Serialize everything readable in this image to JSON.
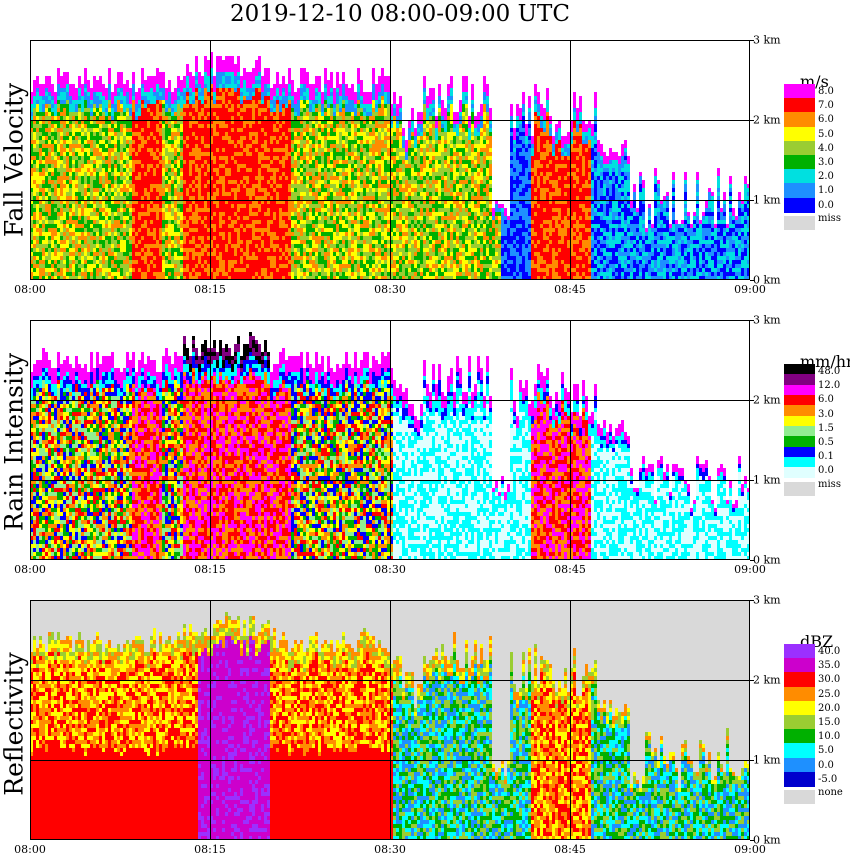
{
  "title": "2019-12-10   08:00-09:00 UTC",
  "chart_data": [
    {
      "type": "heatmap",
      "ylabel": "Fall Velocity",
      "x_ticks": [
        "08:00",
        "08:15",
        "08:30",
        "08:45",
        "09:00"
      ],
      "y_ticks": [
        "0 km",
        "1 km",
        "2 km",
        "3 km"
      ],
      "ylim_km": [
        0,
        3.0
      ],
      "legend": {
        "unit": "m/s",
        "levels": [
          "8.0",
          "7.0",
          "6.0",
          "5.0",
          "4.0",
          "3.0",
          "2.0",
          "1.0",
          "0.0"
        ],
        "colors": [
          "#ff00ff",
          "#ff0000",
          "#ff8c00",
          "#ffff00",
          "#9acd32",
          "#00b000",
          "#00e0e0",
          "#1e90ff",
          "#0000ff"
        ],
        "missing_label": "miss"
      }
    },
    {
      "type": "heatmap",
      "ylabel": "Rain Intensity",
      "x_ticks": [
        "08:00",
        "08:15",
        "08:30",
        "08:45",
        "09:00"
      ],
      "y_ticks": [
        "0 km",
        "1 km",
        "2 km",
        "3 km"
      ],
      "ylim_km": [
        0,
        3.0
      ],
      "legend": {
        "unit": "mm/hr",
        "levels": [
          "48.0",
          "12.0",
          "6.0",
          "3.0",
          "1.5",
          "0.5",
          "0.1",
          "0.0"
        ],
        "colors": [
          "#000000",
          "#800080",
          "#ff00ff",
          "#ff0000",
          "#ff8c00",
          "#ffff00",
          "#90ee90",
          "#00b000",
          "#0000ff",
          "#00ffff",
          "#e0ffff"
        ],
        "missing_label": "miss"
      }
    },
    {
      "type": "heatmap",
      "ylabel": "Reflectivity",
      "x_ticks": [
        "08:00",
        "08:15",
        "08:30",
        "08:45",
        "09:00"
      ],
      "y_ticks": [
        "0 km",
        "1 km",
        "2 km",
        "3 km"
      ],
      "ylim_km": [
        0,
        3.0
      ],
      "legend": {
        "unit": "dBZ",
        "levels": [
          "40.0",
          "35.0",
          "30.0",
          "25.0",
          "20.0",
          "15.0",
          "10.0",
          "5.0",
          "0.0",
          "-5.0"
        ],
        "colors": [
          "#9b30ff",
          "#cc00cc",
          "#ff0000",
          "#ff8c00",
          "#ffff00",
          "#9acd32",
          "#00b000",
          "#00ffff",
          "#1e90ff",
          "#0000cd"
        ],
        "missing_label": "none"
      }
    }
  ]
}
